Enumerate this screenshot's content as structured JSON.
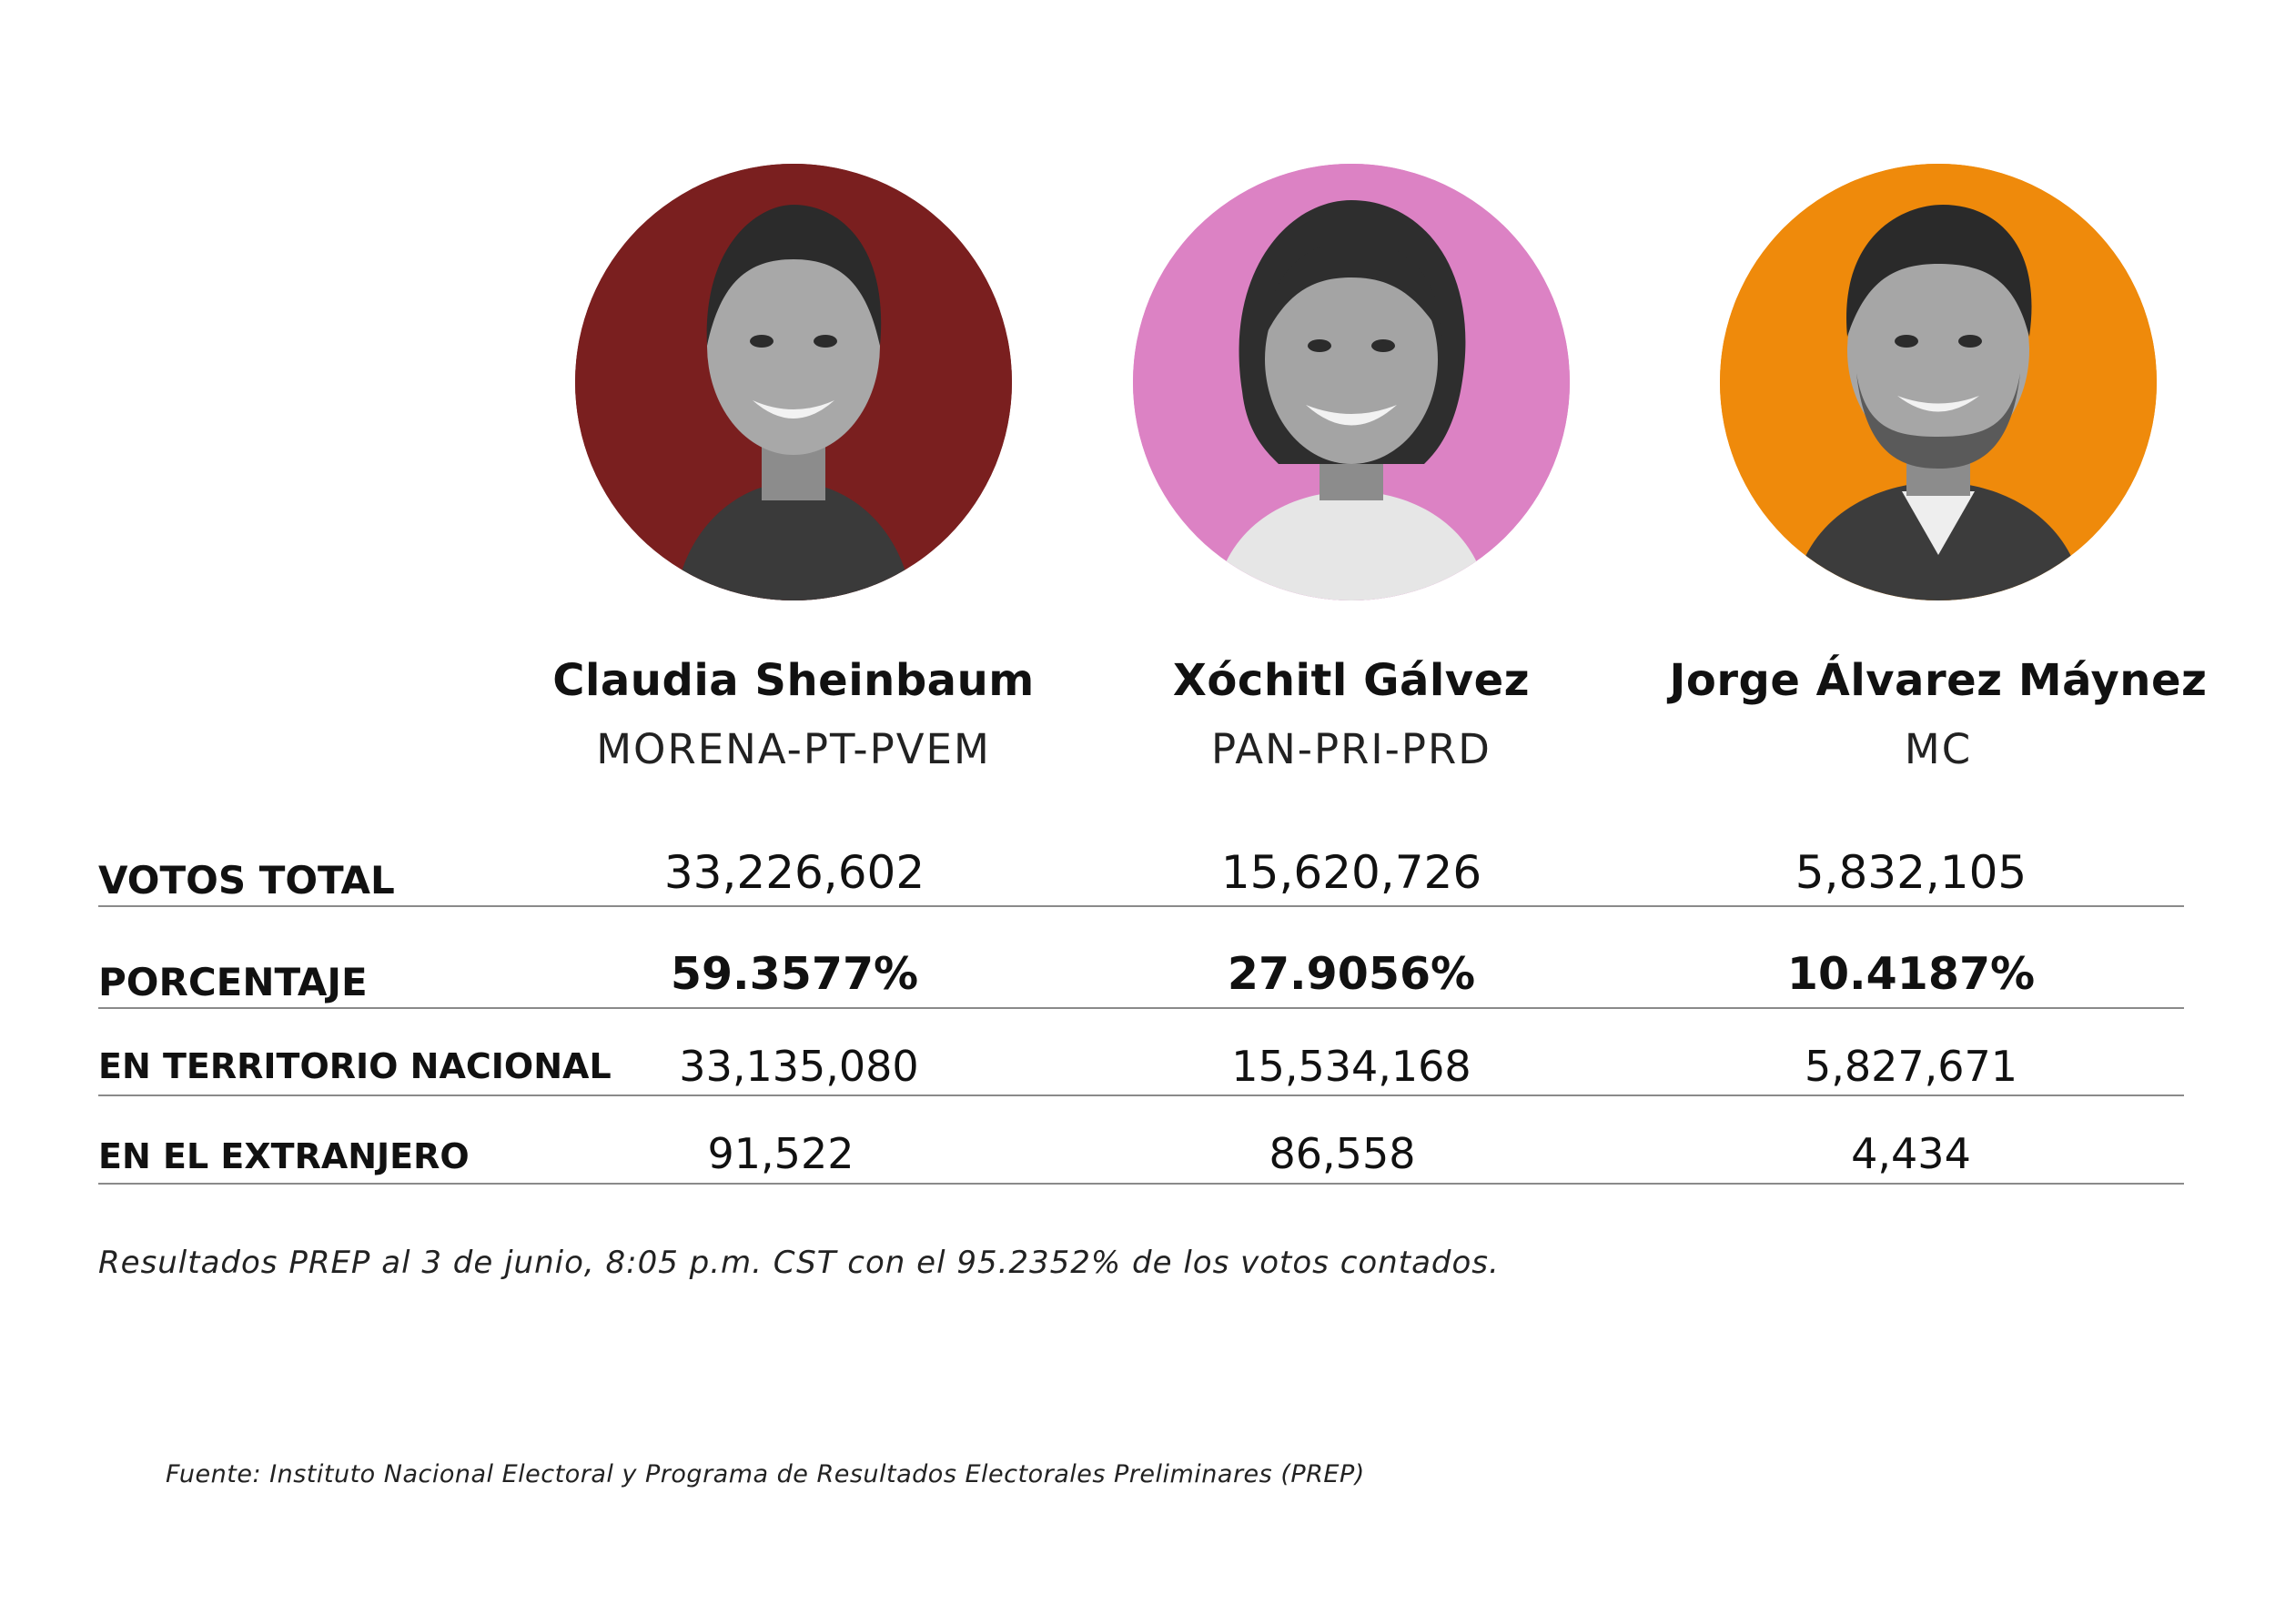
{
  "candidates": [
    {
      "name": "Claudia Sheinbaum",
      "party": "MORENA-PT-PVEM",
      "photo_bg": "#7a1f1f",
      "photo_icon": "portrait-icon"
    },
    {
      "name": "Xóchitl Gálvez",
      "party": "PAN-PRI-PRD",
      "photo_bg": "#dc82c4",
      "photo_icon": "portrait-icon"
    },
    {
      "name": "Jorge Álvarez Máynez",
      "party": "MC",
      "photo_bg": "#ef8a0b",
      "photo_icon": "portrait-icon"
    }
  ],
  "table": {
    "rows": [
      {
        "label": "VOTOS TOTAL",
        "values": [
          "33,226,602",
          "15,620,726",
          "5,832,105"
        ]
      },
      {
        "label": "PORCENTAJE",
        "values": [
          "59.3577%",
          "27.9056%",
          "10.4187%"
        ]
      },
      {
        "label": "EN TERRITORIO NACIONAL",
        "values": [
          "33,135,080",
          "15,534,168",
          "5,827,671"
        ]
      },
      {
        "label": "EN EL EXTRANJERO",
        "values": [
          "91,522",
          "86,558",
          "4,434"
        ]
      }
    ]
  },
  "footnote": "Resultados PREP al 3 de junio, 8:05 p.m. CST con el 95.2352% de los votos contados.",
  "source": "Fuente: Instituto Nacional Electoral y Programa de Resultados Electorales Preliminares (PREP)"
}
